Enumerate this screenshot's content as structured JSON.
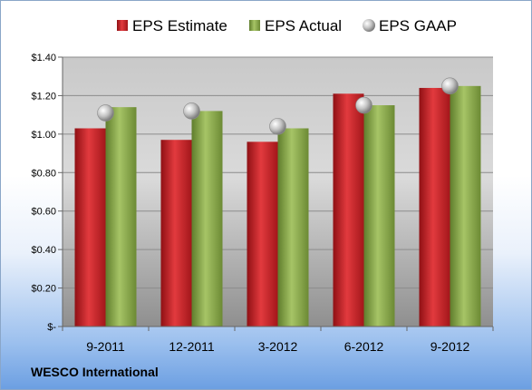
{
  "chart_data": {
    "type": "bar",
    "categories": [
      "9-2011",
      "12-2011",
      "3-2012",
      "6-2012",
      "9-2012"
    ],
    "series": [
      {
        "name": "EPS Estimate",
        "kind": "bar",
        "color": "#cc1f24",
        "values": [
          1.03,
          0.97,
          0.96,
          1.21,
          1.24
        ]
      },
      {
        "name": "EPS Actual",
        "kind": "bar",
        "color": "#8eaf4c",
        "values": [
          1.14,
          1.12,
          1.03,
          1.15,
          1.25
        ]
      },
      {
        "name": "EPS GAAP",
        "kind": "marker",
        "color": "#b9b9b9",
        "values": [
          1.11,
          1.12,
          1.04,
          1.15,
          1.25
        ]
      }
    ],
    "y_ticks": [
      {
        "value": 0,
        "label": "$-"
      },
      {
        "value": 0.2,
        "label": "$0.20"
      },
      {
        "value": 0.4,
        "label": "$0.40"
      },
      {
        "value": 0.6,
        "label": "$0.60"
      },
      {
        "value": 0.8,
        "label": "$0.80"
      },
      {
        "value": 1.0,
        "label": "$1.00"
      },
      {
        "value": 1.2,
        "label": "$1.20"
      },
      {
        "value": 1.4,
        "label": "$1.40"
      }
    ],
    "ylim": [
      0,
      1.4
    ],
    "grid": true,
    "legend_position": "top",
    "footer": "WESCO International"
  }
}
